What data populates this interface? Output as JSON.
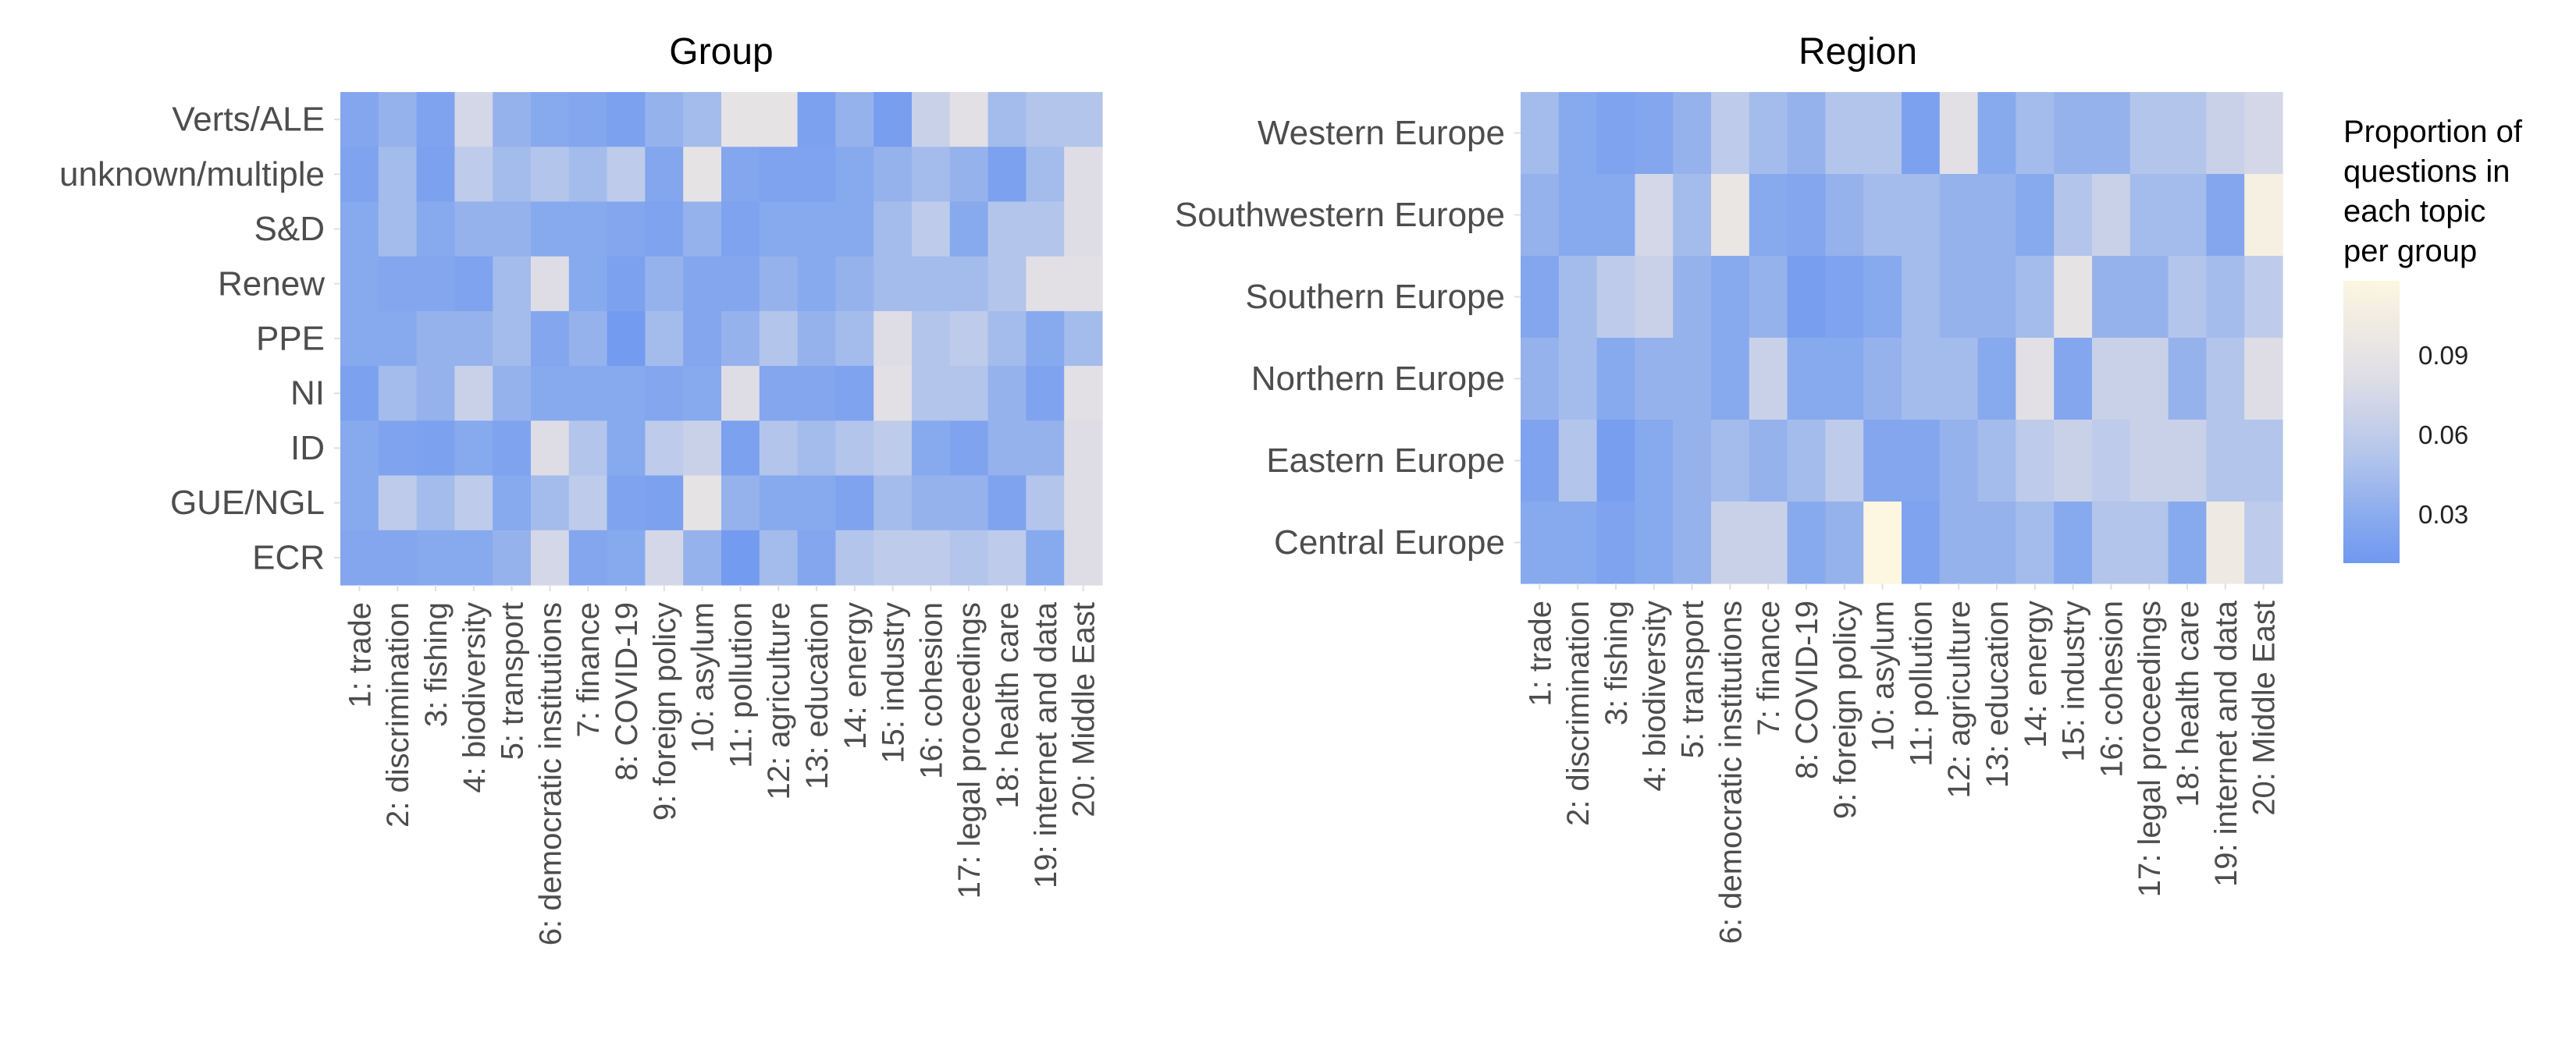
{
  "topics": [
    "1: trade",
    "2: discrimination",
    "3: fishing",
    "4: biodiversity",
    "5: transport",
    "6: democratic institutions",
    "7: finance",
    "8: COVID-19",
    "9: foreign policy",
    "10: asylum",
    "11: pollution",
    "12: agriculture",
    "13: education",
    "14: energy",
    "15: industry",
    "16: cohesion",
    "17: legal proceedings",
    "18: health care",
    "19: internet and data",
    "20: Middle East"
  ],
  "chart_data": [
    {
      "type": "heatmap",
      "title": "Group",
      "rows": [
        "Verts/ALE",
        "unknown/multiple",
        "S&D",
        "Renew",
        "PPE",
        "NI",
        "ID",
        "GUE/NGL",
        "ECR"
      ],
      "values": [
        [
          0.04,
          0.05,
          0.035,
          0.075,
          0.05,
          0.045,
          0.04,
          0.03,
          0.05,
          0.055,
          0.09,
          0.09,
          0.03,
          0.05,
          0.025,
          0.07,
          0.085,
          0.055,
          0.06,
          0.06
        ],
        [
          0.035,
          0.055,
          0.03,
          0.065,
          0.055,
          0.06,
          0.055,
          0.065,
          0.04,
          0.09,
          0.04,
          0.035,
          0.035,
          0.045,
          0.05,
          0.055,
          0.05,
          0.03,
          0.055,
          0.08
        ],
        [
          0.045,
          0.055,
          0.045,
          0.05,
          0.05,
          0.045,
          0.045,
          0.04,
          0.035,
          0.05,
          0.035,
          0.045,
          0.045,
          0.045,
          0.055,
          0.065,
          0.045,
          0.06,
          0.06,
          0.08
        ],
        [
          0.045,
          0.04,
          0.04,
          0.035,
          0.055,
          0.08,
          0.045,
          0.03,
          0.05,
          0.04,
          0.04,
          0.05,
          0.045,
          0.05,
          0.055,
          0.055,
          0.055,
          0.06,
          0.085,
          0.085
        ],
        [
          0.045,
          0.045,
          0.05,
          0.05,
          0.055,
          0.04,
          0.05,
          0.02,
          0.055,
          0.04,
          0.05,
          0.06,
          0.05,
          0.055,
          0.08,
          0.06,
          0.065,
          0.055,
          0.045,
          0.055
        ],
        [
          0.03,
          0.055,
          0.05,
          0.07,
          0.05,
          0.045,
          0.045,
          0.045,
          0.04,
          0.045,
          0.08,
          0.04,
          0.04,
          0.035,
          0.085,
          0.06,
          0.06,
          0.05,
          0.035,
          0.085
        ],
        [
          0.045,
          0.035,
          0.03,
          0.045,
          0.035,
          0.08,
          0.06,
          0.045,
          0.065,
          0.07,
          0.03,
          0.06,
          0.055,
          0.06,
          0.065,
          0.045,
          0.035,
          0.05,
          0.05,
          0.08
        ],
        [
          0.045,
          0.065,
          0.055,
          0.065,
          0.045,
          0.055,
          0.065,
          0.035,
          0.03,
          0.09,
          0.05,
          0.045,
          0.045,
          0.035,
          0.055,
          0.05,
          0.05,
          0.035,
          0.06,
          0.08
        ],
        [
          0.04,
          0.04,
          0.045,
          0.045,
          0.05,
          0.075,
          0.04,
          0.045,
          0.075,
          0.05,
          0.02,
          0.055,
          0.04,
          0.06,
          0.065,
          0.065,
          0.06,
          0.065,
          0.045,
          0.08
        ]
      ]
    },
    {
      "type": "heatmap",
      "title": "Region",
      "rows": [
        "Western Europe",
        "Southwestern Europe",
        "Southern Europe",
        "Northern Europe",
        "Eastern Europe",
        "Central Europe"
      ],
      "values": [
        [
          0.055,
          0.045,
          0.035,
          0.04,
          0.05,
          0.065,
          0.055,
          0.05,
          0.06,
          0.06,
          0.03,
          0.085,
          0.045,
          0.055,
          0.05,
          0.05,
          0.06,
          0.06,
          0.07,
          0.075
        ],
        [
          0.05,
          0.045,
          0.045,
          0.075,
          0.055,
          0.095,
          0.045,
          0.04,
          0.05,
          0.055,
          0.055,
          0.05,
          0.05,
          0.045,
          0.06,
          0.07,
          0.055,
          0.055,
          0.04,
          0.11
        ],
        [
          0.04,
          0.055,
          0.065,
          0.07,
          0.05,
          0.045,
          0.05,
          0.025,
          0.035,
          0.045,
          0.055,
          0.05,
          0.05,
          0.055,
          0.09,
          0.05,
          0.05,
          0.06,
          0.055,
          0.065
        ],
        [
          0.05,
          0.055,
          0.045,
          0.05,
          0.05,
          0.045,
          0.07,
          0.045,
          0.045,
          0.05,
          0.055,
          0.055,
          0.045,
          0.085,
          0.04,
          0.07,
          0.07,
          0.05,
          0.06,
          0.08
        ],
        [
          0.035,
          0.06,
          0.025,
          0.045,
          0.05,
          0.055,
          0.05,
          0.055,
          0.065,
          0.04,
          0.04,
          0.05,
          0.055,
          0.065,
          0.07,
          0.065,
          0.07,
          0.07,
          0.06,
          0.06
        ],
        [
          0.045,
          0.045,
          0.035,
          0.045,
          0.05,
          0.07,
          0.07,
          0.045,
          0.05,
          0.12,
          0.035,
          0.05,
          0.05,
          0.055,
          0.045,
          0.06,
          0.06,
          0.045,
          0.1,
          0.065
        ]
      ]
    }
  ],
  "legend": {
    "title_lines": [
      "Proportion of",
      "questions in",
      "each topic",
      "per group"
    ],
    "ticks": [
      "0.09",
      "0.06",
      "0.03"
    ],
    "tick_values": [
      0.09,
      0.06,
      0.03
    ],
    "range": [
      0.015,
      0.12
    ]
  },
  "colors": {
    "low": "#6f98f0",
    "mid": "#dedde6",
    "high": "#fdf6e0",
    "label": "#4d4d4d"
  }
}
